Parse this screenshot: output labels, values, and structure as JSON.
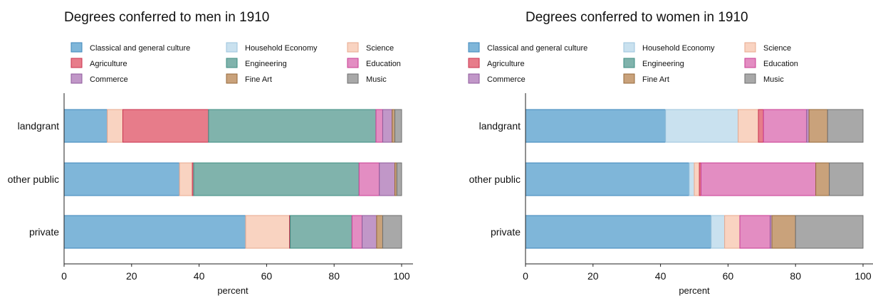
{
  "legend_items": [
    {
      "key": "classical",
      "label": "Classical and general culture",
      "color": "#7FB6D9"
    },
    {
      "key": "household",
      "label": "Household Economy",
      "color": "#C9E1EF"
    },
    {
      "key": "science",
      "label": "Science",
      "color": "#F9D3C1"
    },
    {
      "key": "agriculture",
      "label": "Agriculture",
      "color": "#E77C8A"
    },
    {
      "key": "engineering",
      "label": "Engineering",
      "color": "#80B3AC"
    },
    {
      "key": "education",
      "label": "Education",
      "color": "#E38DC2"
    },
    {
      "key": "commerce",
      "label": "Commerce",
      "color": "#C197C8"
    },
    {
      "key": "fineart",
      "label": "Fine Art",
      "color": "#C9A27B"
    },
    {
      "key": "music",
      "label": "Music",
      "color": "#A8A8A8"
    }
  ],
  "edge_colors": {
    "classical": "#3D87BB",
    "household": "#9CC4DD",
    "science": "#E8A88E",
    "agriculture": "#C8324E",
    "engineering": "#3E8C82",
    "education": "#C83C93",
    "commerce": "#8E5A9B",
    "fineart": "#96693B",
    "music": "#6E6E6E"
  },
  "chart_data": [
    {
      "type": "bar",
      "orientation": "horizontal",
      "stacked": true,
      "title": "Degrees conferred to men in 1910",
      "xlabel": "percent",
      "ylabel": "",
      "xlim": [
        0,
        100
      ],
      "xticks": [
        "0",
        "20",
        "40",
        "60",
        "80",
        "100"
      ],
      "categories": [
        "landgrant",
        "other public",
        "private"
      ],
      "legend_position": "top",
      "grid": false,
      "series": [
        {
          "name": "Classical and general culture",
          "key": "classical",
          "values": [
            12.8,
            34.2,
            53.8
          ]
        },
        {
          "name": "Household Economy",
          "key": "household",
          "values": [
            0,
            0,
            0
          ]
        },
        {
          "name": "Science",
          "key": "science",
          "values": [
            4.6,
            3.8,
            13.0
          ]
        },
        {
          "name": "Agriculture",
          "key": "agriculture",
          "values": [
            25.4,
            0.4,
            0.2
          ]
        },
        {
          "name": "Engineering",
          "key": "engineering",
          "values": [
            49.6,
            49.0,
            18.3
          ]
        },
        {
          "name": "Education",
          "key": "education",
          "values": [
            2.0,
            6.0,
            3.0
          ]
        },
        {
          "name": "Commerce",
          "key": "commerce",
          "values": [
            2.8,
            4.6,
            4.3
          ]
        },
        {
          "name": "Fine Art",
          "key": "fineart",
          "values": [
            0.8,
            0.6,
            1.8
          ]
        },
        {
          "name": "Music",
          "key": "music",
          "values": [
            2.0,
            1.4,
            5.6
          ]
        }
      ]
    },
    {
      "type": "bar",
      "orientation": "horizontal",
      "stacked": true,
      "title": "Degrees conferred to women in 1910",
      "xlabel": "percent",
      "ylabel": "",
      "xlim": [
        0,
        100
      ],
      "xticks": [
        "0",
        "20",
        "40",
        "60",
        "80",
        "100"
      ],
      "categories": [
        "landgrant",
        "other public",
        "private"
      ],
      "legend_position": "top",
      "grid": false,
      "series": [
        {
          "name": "Classical and general culture",
          "key": "classical",
          "values": [
            41.5,
            48.5,
            55.0
          ]
        },
        {
          "name": "Household Economy",
          "key": "household",
          "values": [
            21.5,
            1.5,
            4.0
          ]
        },
        {
          "name": "Science",
          "key": "science",
          "values": [
            6.0,
            1.5,
            4.5
          ]
        },
        {
          "name": "Agriculture",
          "key": "agriculture",
          "values": [
            1.5,
            0.5,
            0
          ]
        },
        {
          "name": "Engineering",
          "key": "engineering",
          "values": [
            0,
            0,
            0
          ]
        },
        {
          "name": "Education",
          "key": "education",
          "values": [
            12.8,
            34.0,
            9.0
          ]
        },
        {
          "name": "Commerce",
          "key": "commerce",
          "values": [
            0.7,
            0,
            0.5
          ]
        },
        {
          "name": "Fine Art",
          "key": "fineart",
          "values": [
            5.5,
            4.0,
            7.0
          ]
        },
        {
          "name": "Music",
          "key": "music",
          "values": [
            10.5,
            10.0,
            20.0
          ]
        }
      ]
    }
  ]
}
